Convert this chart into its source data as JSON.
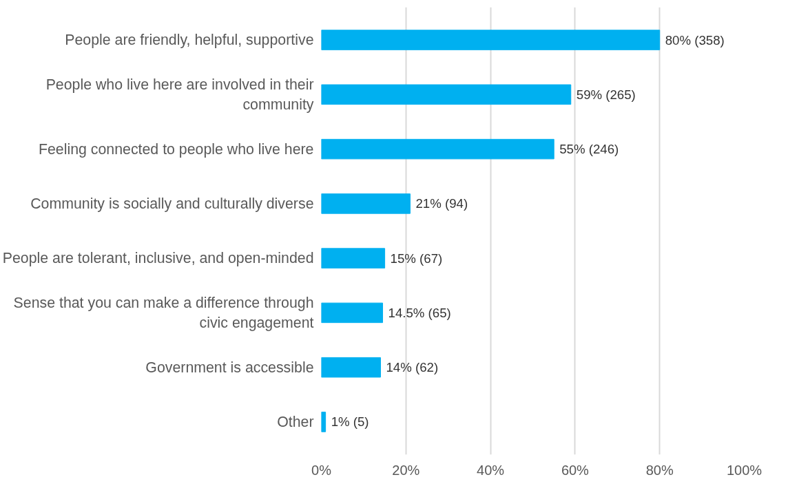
{
  "chart_data": {
    "type": "bar",
    "orientation": "horizontal",
    "categories": [
      "People are friendly, helpful, supportive",
      "People who live here are involved in their\ncommunity",
      "Feeling connected to people who live here",
      "Community is socially and culturally diverse",
      "People are tolerant, inclusive, and open-minded",
      "Sense that you can make a difference through\ncivic engagement",
      "Government is accessible",
      "Other"
    ],
    "values": [
      80,
      59,
      55,
      21,
      15,
      14.5,
      14,
      1
    ],
    "value_labels": [
      "80% (358)",
      "59% (265)",
      "55% (246)",
      "21% (94)",
      "15% (67)",
      "14.5% (65)",
      "14% (62)",
      "1% (5)"
    ],
    "color": "#00b0f0",
    "xlim": [
      0,
      100
    ],
    "xticks": [
      {
        "value": 0,
        "label": "0%"
      },
      {
        "value": 20,
        "label": "20%"
      },
      {
        "value": 40,
        "label": "40%"
      },
      {
        "value": 60,
        "label": "60%"
      },
      {
        "value": 80,
        "label": "80%"
      },
      {
        "value": 100,
        "label": "100%"
      }
    ],
    "grid": "x"
  }
}
